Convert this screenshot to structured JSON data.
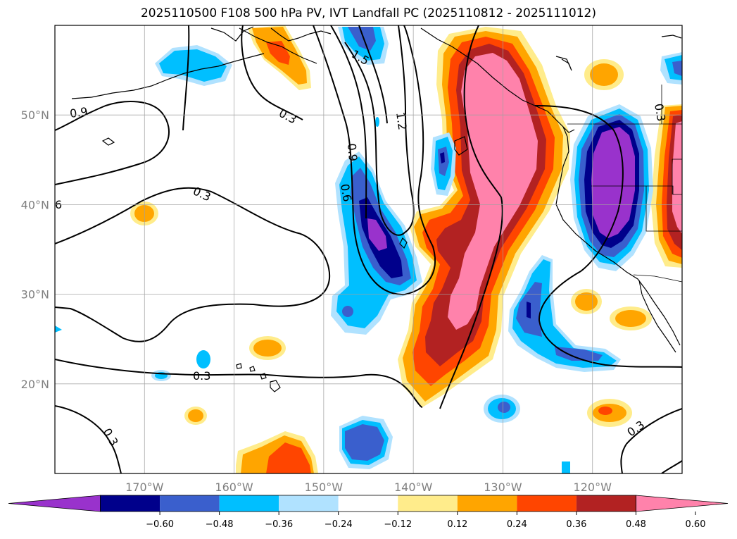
{
  "title": "2025110500 F108 500 hPa PV, IVT Landfall PC (2025110812 - 2025111012)",
  "map": {
    "lon_range": [
      -180,
      -110
    ],
    "lat_range": [
      10,
      60
    ],
    "lat_ticks": [
      {
        "value": 50,
        "label": "50°N"
      },
      {
        "value": 40,
        "label": "40°N"
      },
      {
        "value": 30,
        "label": "30°N"
      },
      {
        "value": 20,
        "label": "20°N"
      }
    ],
    "lon_ticks": [
      {
        "value": -170,
        "label": "170°W"
      },
      {
        "value": -160,
        "label": "160°W"
      },
      {
        "value": -150,
        "label": "150°W"
      },
      {
        "value": -140,
        "label": "140°W"
      },
      {
        "value": -130,
        "label": "130°W"
      },
      {
        "value": -120,
        "label": "120°W"
      }
    ],
    "grid": true,
    "contour_labels": [
      "1.5",
      "0.9",
      "0.3",
      "1.2",
      "0.9",
      "0.6",
      "6",
      "0.3",
      "0.3",
      "0.3",
      "0.3",
      "0.3"
    ]
  },
  "colorbar": {
    "ticks": [
      "−0.60",
      "−0.48",
      "−0.36",
      "−0.24",
      "−0.12",
      "0.12",
      "0.24",
      "0.36",
      "0.48",
      "0.60"
    ],
    "colors": [
      "#9932cc",
      "#00008b",
      "#3a5fcd",
      "#00bfff",
      "#b0e2ff",
      "#ffffff",
      "#ffec8b",
      "#ffa500",
      "#ff4500",
      "#b22222",
      "#ff82ab"
    ],
    "extend": "both"
  }
}
